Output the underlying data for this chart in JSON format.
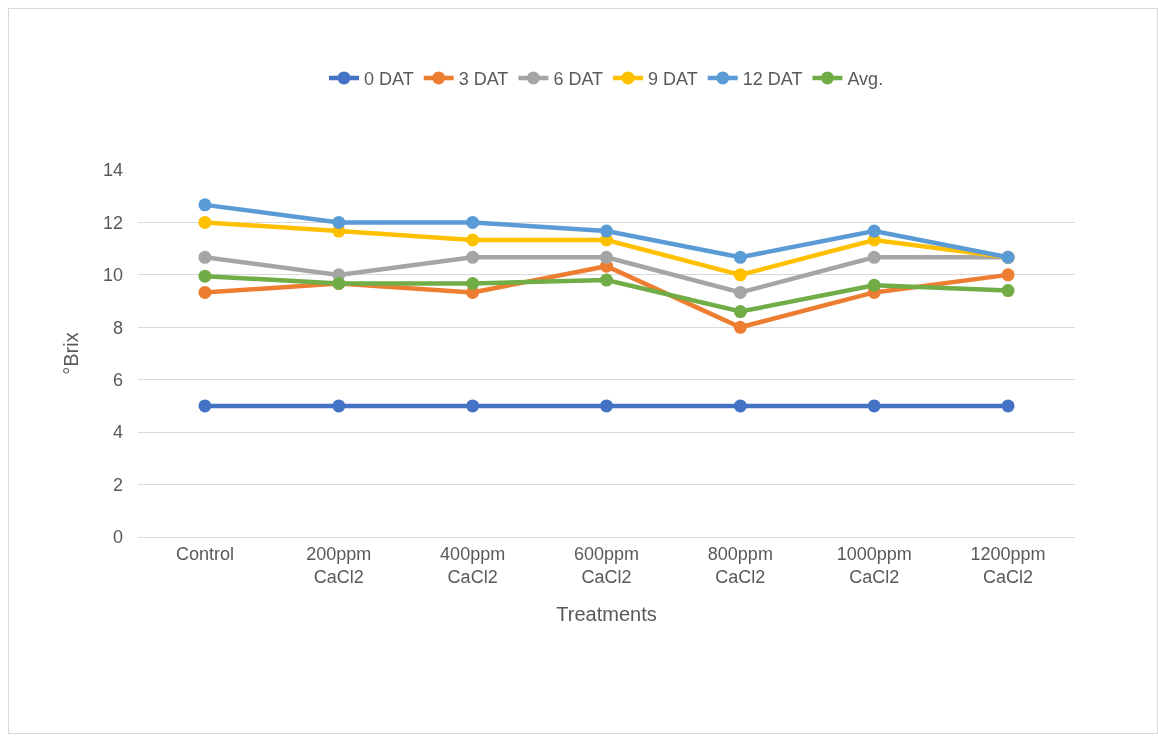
{
  "chart_data": {
    "type": "line",
    "xlabel": "Treatments",
    "ylabel": "°Brix",
    "categories": [
      "Control",
      "200ppm CaCl2",
      "400ppm CaCl2",
      "600ppm CaCl2",
      "800ppm CaCl2",
      "1000ppm CaCl2",
      "1200ppm CaCl2"
    ],
    "series": [
      {
        "name": "0 DAT",
        "color": "#4472c4",
        "values": [
          5,
          5,
          5,
          5,
          5,
          5,
          5
        ]
      },
      {
        "name": "3 DAT",
        "color": "#ed7d31",
        "values": [
          9.33,
          9.67,
          9.33,
          10.33,
          8,
          9.33,
          10
        ]
      },
      {
        "name": "6 DAT",
        "color": "#a5a5a5",
        "values": [
          10.67,
          10,
          10.67,
          10.67,
          9.33,
          10.67,
          10.67
        ]
      },
      {
        "name": "9 DAT",
        "color": "#ffc000",
        "values": [
          12,
          11.67,
          11.33,
          11.33,
          10,
          11.33,
          10.67
        ]
      },
      {
        "name": "12 DAT",
        "color": "#5b9bd5",
        "values": [
          12.67,
          12,
          12,
          11.67,
          10.67,
          11.67,
          10.67
        ]
      },
      {
        "name": "Avg.",
        "color": "#70ad47",
        "values": [
          9.95,
          9.67,
          9.67,
          9.8,
          8.6,
          9.6,
          9.4
        ]
      }
    ],
    "ylim": [
      0,
      14
    ],
    "yticks": [
      0,
      2,
      4,
      6,
      8,
      10,
      12,
      14
    ],
    "grid": "y",
    "legend": "top",
    "marker": "circle",
    "line_style": "solid"
  }
}
